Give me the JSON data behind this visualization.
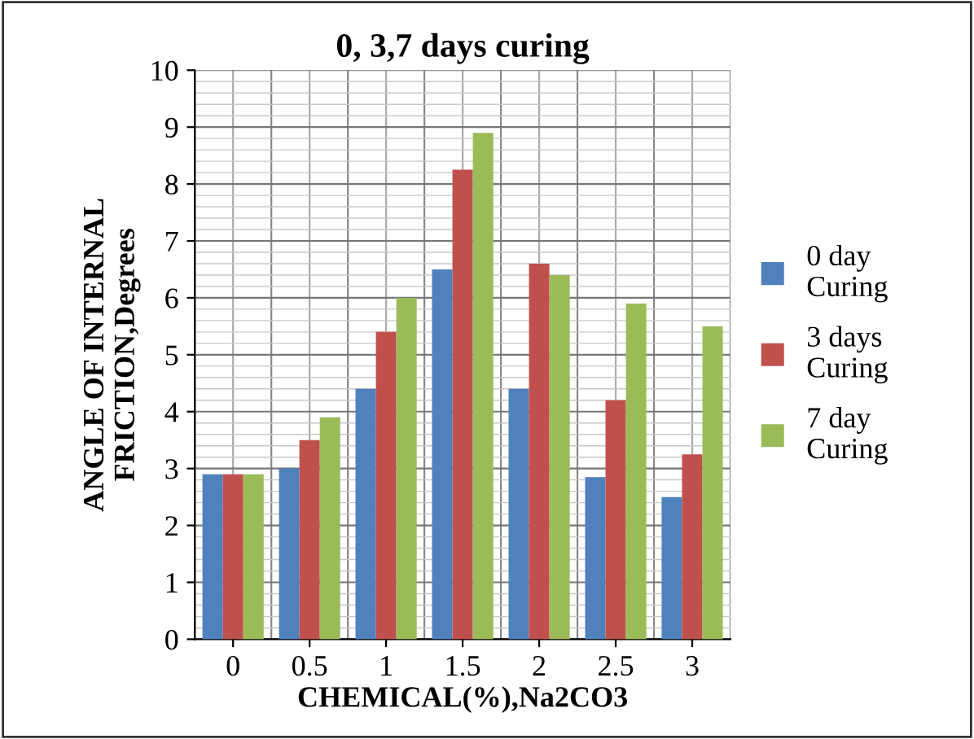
{
  "chart_data": {
    "type": "bar",
    "title": "0, 3,7 days curing",
    "xlabel": "CHEMICAL(%),Na2CO3",
    "ylabel": "ANGLE OF INTERNAL\nFRICTION,Degrees",
    "categories": [
      "0",
      "0.5",
      "1",
      "1.5",
      "2",
      "2.5",
      "3"
    ],
    "series": [
      {
        "name": "0 day\nCuring",
        "color": "#4f81bd",
        "values": [
          2.9,
          3.0,
          4.4,
          6.5,
          4.4,
          2.85,
          2.5
        ]
      },
      {
        "name": "3 days\nCuring",
        "color": "#c0504d",
        "values": [
          2.9,
          3.5,
          5.4,
          8.25,
          6.6,
          4.2,
          3.25
        ]
      },
      {
        "name": "7 day\nCuring",
        "color": "#9bbb59",
        "values": [
          2.9,
          3.9,
          6.0,
          8.9,
          6.4,
          5.9,
          5.5
        ]
      }
    ],
    "ylim": [
      0,
      10
    ],
    "yticks": [
      0,
      1,
      2,
      3,
      4,
      5,
      6,
      7,
      8,
      9,
      10
    ],
    "grid": true,
    "legend": "right"
  }
}
